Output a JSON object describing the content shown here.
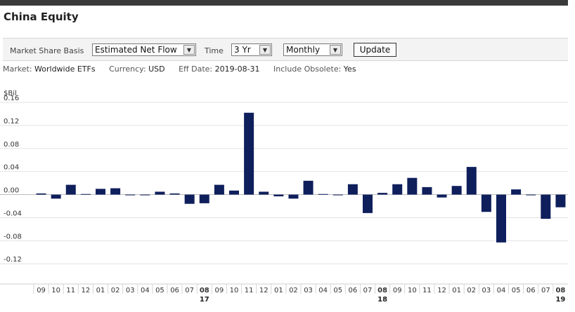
{
  "page": {
    "title": "China Equity"
  },
  "toolbar": {
    "basis_label": "Market Share Basis",
    "basis_value": "Estimated Net Flow",
    "time_label": "Time",
    "time_value": "3 Yr",
    "freq_value": "Monthly",
    "update_label": "Update"
  },
  "meta": {
    "market_key": "Market:",
    "market_value": "Worldwide ETFs",
    "currency_key": "Currency:",
    "currency_value": "USD",
    "date_key": "Eff Date:",
    "date_value": "2019-08-31",
    "obsolete_key": "Include Obsolete:",
    "obsolete_value": "Yes"
  },
  "chart_data": {
    "type": "bar",
    "ylabel": "$Bil",
    "ylim": [
      -0.155,
      0.16
    ],
    "yticks": [
      0.16,
      0.12,
      0.08,
      0.04,
      0.0,
      -0.04,
      -0.08,
      -0.12
    ],
    "ytick_labels": [
      "0.16",
      "0.12",
      "0.08",
      "0.04",
      "0.00",
      "-0.04",
      "-0.08",
      "-0.12"
    ],
    "categories": [
      "09",
      "10",
      "11",
      "12",
      "01",
      "02",
      "03",
      "04",
      "05",
      "06",
      "07",
      "08",
      "09",
      "10",
      "11",
      "12",
      "01",
      "02",
      "03",
      "04",
      "05",
      "06",
      "07",
      "08",
      "09",
      "10",
      "11",
      "12",
      "01",
      "02",
      "03",
      "04",
      "05",
      "06",
      "07",
      "08"
    ],
    "year_labels": [
      {
        "index": 11,
        "label": "17"
      },
      {
        "index": 23,
        "label": "18"
      },
      {
        "index": 35,
        "label": "19"
      }
    ],
    "values": [
      0.002,
      -0.007,
      0.017,
      0.001,
      0.01,
      0.011,
      -0.001,
      -0.001,
      0.005,
      0.002,
      -0.016,
      -0.015,
      0.017,
      0.007,
      0.142,
      0.005,
      -0.003,
      -0.007,
      0.024,
      0.001,
      -0.001,
      0.018,
      -0.032,
      0.003,
      0.018,
      0.029,
      0.013,
      -0.005,
      0.015,
      0.048,
      -0.03,
      -0.083,
      0.009,
      -0.001,
      -0.042,
      -0.022
    ],
    "bar_color": "#0f1f5c",
    "grid": true
  }
}
